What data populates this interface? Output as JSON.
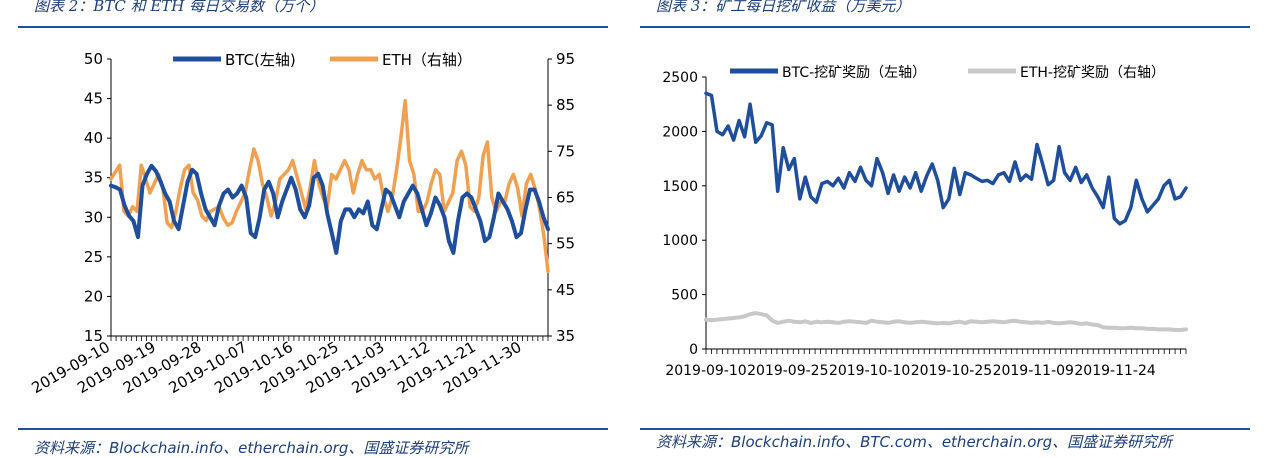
{
  "figures": {
    "left": {
      "title": "图表 2：BTC 和 ETH 每日交易数（万个）",
      "source": "资料来源：Blockchain.info、etherchain.org、国盛证券研究所"
    },
    "right": {
      "title": "图表 3：矿工每日挖矿收益（万美元）",
      "source": "资料来源：Blockchain.info、BTC.com、etherchain.org、国盛证券研究所"
    }
  },
  "colors": {
    "btc": "#1f4e9c",
    "eth": "#f0a050",
    "eth_reward": "#c8c8c8",
    "axis": "#000000",
    "rule": "#1f4e9c"
  },
  "chart_data": [
    {
      "type": "line",
      "title": "",
      "x_tick_labels": [
        "2019-09-10",
        "2019-09-19",
        "2019-09-28",
        "2019-10-07",
        "2019-10-16",
        "2019-10-25",
        "2019-11-03",
        "2019-11-12",
        "2019-11-21",
        "2019-11-30"
      ],
      "x_start": "2019-09-10",
      "x_end": "2019-12-05",
      "ylim_left": [
        15,
        50
      ],
      "yticks_left": [
        15,
        20,
        25,
        30,
        35,
        40,
        45,
        50
      ],
      "ylim_right": [
        35,
        95
      ],
      "yticks_right": [
        35,
        45,
        55,
        65,
        75,
        85,
        95
      ],
      "legend_position": "top",
      "grid": false,
      "series": [
        {
          "name": "BTC(左轴)",
          "axis": "left",
          "values": [
            34,
            33.8,
            33.5,
            31.5,
            30.2,
            29.5,
            27.5,
            34,
            35.5,
            36.5,
            35.8,
            34.5,
            33,
            32,
            29.5,
            28.5,
            31.5,
            34.5,
            36,
            35.5,
            33,
            31,
            30,
            29,
            31.5,
            33,
            33.5,
            32.5,
            33,
            34,
            32.5,
            28,
            27.5,
            30,
            33.5,
            34.5,
            33,
            30,
            32,
            33.5,
            35,
            33.5,
            31,
            30,
            31.5,
            35,
            35.5,
            34,
            30.5,
            28,
            25.5,
            29.5,
            31,
            31,
            30,
            31,
            30.5,
            32,
            29,
            28.5,
            31,
            33.5,
            33,
            31.5,
            30,
            32,
            33,
            34,
            33,
            31,
            29,
            30.5,
            32.5,
            31.5,
            30,
            27,
            25.5,
            29.5,
            32.5,
            33,
            32.5,
            31,
            29.5,
            27,
            27.5,
            30,
            33,
            32,
            31,
            29.5,
            27.5,
            28,
            31,
            33.5,
            33.5,
            32,
            30,
            28.5
          ]
        },
        {
          "name": "ETH（右轴）",
          "axis": "right",
          "values": [
            69,
            70.5,
            72,
            62,
            61,
            63,
            62,
            72,
            69,
            66,
            68,
            70,
            67,
            59.5,
            58.5,
            62,
            67,
            71,
            72,
            66,
            64.5,
            61,
            60,
            62,
            62.5,
            63,
            60.5,
            59,
            59.5,
            62,
            64,
            66,
            71,
            75.5,
            73,
            68,
            65,
            61,
            64,
            69,
            70,
            71,
            73,
            69.5,
            66,
            62.5,
            67,
            73,
            68,
            65,
            63,
            70,
            69,
            71,
            73,
            71,
            66,
            70,
            73,
            71,
            71,
            69,
            70,
            65,
            62,
            65,
            71,
            78,
            86,
            73,
            70,
            62,
            62,
            64,
            68,
            71,
            70,
            62,
            64,
            66,
            73,
            75,
            72,
            63,
            62,
            65,
            74,
            77,
            65,
            62,
            64,
            64,
            68,
            70,
            67,
            61,
            68,
            70,
            67,
            63,
            57,
            49
          ]
        }
      ]
    },
    {
      "type": "line",
      "title": "",
      "x_tick_labels": [
        "2019-09-10",
        "2019-09-25",
        "2019-10-10",
        "2019-10-25",
        "2019-11-09",
        "2019-11-24"
      ],
      "x_start": "2019-09-10",
      "x_end": "2019-12-07",
      "ylim_left": [
        0,
        2500
      ],
      "yticks_left": [
        0,
        500,
        1000,
        1500,
        2000,
        2500
      ],
      "legend_position": "top",
      "grid": false,
      "series": [
        {
          "name": "BTC-挖矿奖励（左轴）",
          "axis": "left",
          "values": [
            2350,
            2330,
            2000,
            1970,
            2050,
            1920,
            2100,
            1950,
            2250,
            1900,
            1960,
            2080,
            2060,
            1450,
            1850,
            1650,
            1750,
            1380,
            1580,
            1400,
            1350,
            1520,
            1540,
            1500,
            1570,
            1480,
            1620,
            1540,
            1670,
            1550,
            1500,
            1750,
            1620,
            1430,
            1600,
            1450,
            1580,
            1480,
            1620,
            1450,
            1590,
            1700,
            1550,
            1300,
            1380,
            1660,
            1420,
            1620,
            1600,
            1570,
            1540,
            1550,
            1520,
            1600,
            1620,
            1540,
            1720,
            1550,
            1600,
            1560,
            1880,
            1700,
            1510,
            1550,
            1860,
            1620,
            1550,
            1670,
            1530,
            1600,
            1480,
            1400,
            1300,
            1580,
            1200,
            1150,
            1180,
            1300,
            1550,
            1380,
            1260,
            1320,
            1380,
            1500,
            1550,
            1380,
            1400,
            1480
          ]
        },
        {
          "name": "ETH-挖矿奖励（右轴）",
          "axis": "right",
          "values": [
            270,
            265,
            270,
            275,
            280,
            285,
            290,
            300,
            320,
            330,
            320,
            310,
            260,
            240,
            250,
            260,
            250,
            245,
            255,
            240,
            250,
            245,
            250,
            245,
            240,
            250,
            255,
            250,
            245,
            240,
            260,
            250,
            245,
            240,
            250,
            255,
            245,
            240,
            245,
            250,
            245,
            240,
            235,
            240,
            235,
            245,
            250,
            240,
            255,
            250,
            245,
            250,
            255,
            250,
            245,
            255,
            260,
            250,
            245,
            240,
            245,
            240,
            250,
            240,
            235,
            240,
            245,
            240,
            230,
            235,
            225,
            220,
            200,
            195,
            195,
            190,
            190,
            195,
            190,
            190,
            185,
            185,
            180,
            180,
            180,
            175,
            175,
            180
          ]
        }
      ]
    }
  ]
}
